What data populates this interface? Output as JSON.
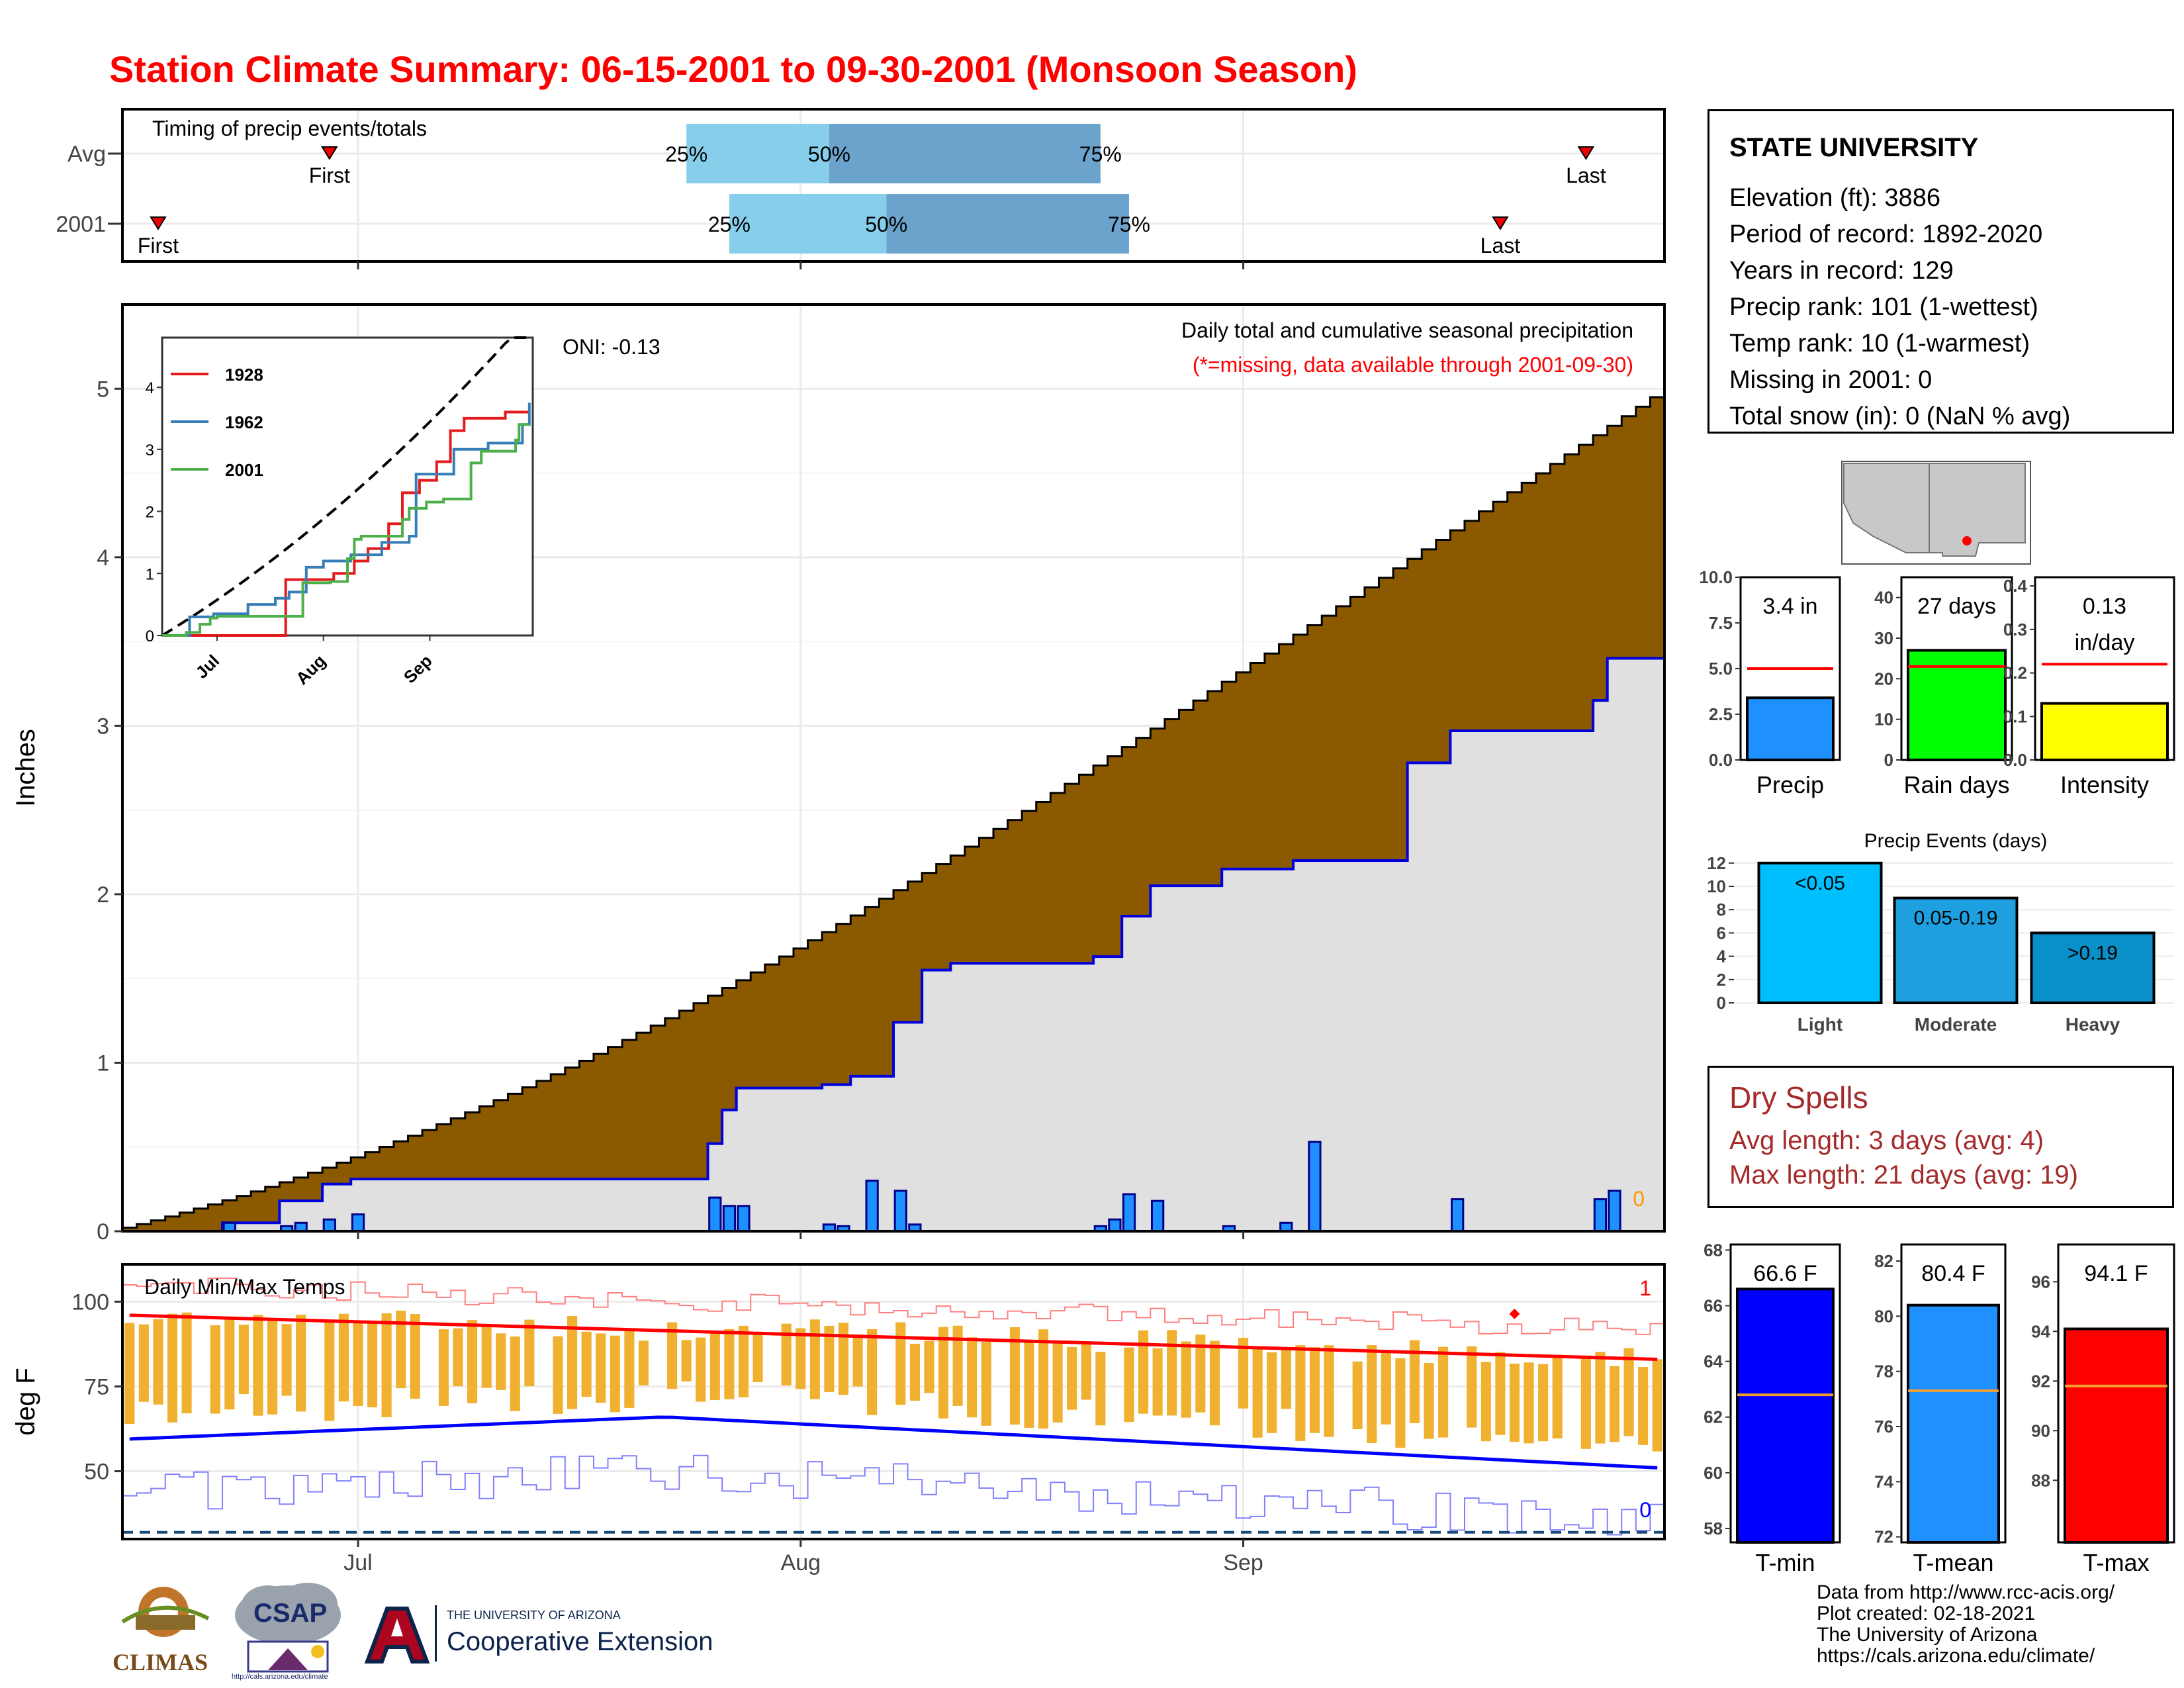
{
  "title": "Station Climate Summary: 06-15-2001 to 09-30-2001 (Monsoon Season)",
  "timing": {
    "label": "Timing of precip events/totals",
    "rows": [
      {
        "name": "Avg",
        "first": "06-29",
        "p25": "07-24",
        "p50": "08-03",
        "p75": "08-22",
        "last": "09-25"
      },
      {
        "name": "2001",
        "first": "06-17",
        "p25": "07-27",
        "p50": "08-07",
        "p75": "08-24",
        "last": "09-19"
      }
    ],
    "first_label": "First",
    "last_label": "Last",
    "p25_label": "25%",
    "p50_label": "50%",
    "p75_label": "75%"
  },
  "main": {
    "ylabel": "Inches",
    "oni": "ONI: -0.13",
    "note1": "Daily total and cumulative seasonal precipitation",
    "note2": "(*=missing, data available through 2001-09-30)",
    "missing_count": "0",
    "yticks": [
      "0",
      "1",
      "2",
      "3",
      "4",
      "5"
    ]
  },
  "inset": {
    "legend": [
      {
        "name": "1928",
        "color": "#e41a1c"
      },
      {
        "name": "1962",
        "color": "#377eb8"
      },
      {
        "name": "2001",
        "color": "#4daf4a"
      }
    ],
    "yticks": [
      "0",
      "1",
      "2",
      "3",
      "4"
    ],
    "xticks": [
      "Jul",
      "Aug",
      "Sep"
    ]
  },
  "temps": {
    "label": "Daily Min/Max Temps",
    "ylabel": "deg F",
    "yticks": [
      "50",
      "75",
      "100"
    ],
    "record_high_count": "1",
    "record_low_count": "0"
  },
  "xaxis": {
    "ticks": [
      "Jul",
      "Aug",
      "Sep"
    ]
  },
  "station": {
    "name": "STATE UNIVERSITY",
    "lines": [
      "Elevation (ft): 3886",
      "Period of record: 1892-2020",
      "Years in record: 129",
      "Precip rank: 101 (1-wettest)",
      "Temp rank: 10 (1-warmest)",
      "Missing in 2001: 0",
      "Total snow (in): 0 (NaN % avg)"
    ]
  },
  "mini_bars": [
    {
      "label": "Precip",
      "value_text": "3.4 in",
      "value": 3.4,
      "avg": 5.0,
      "ymax": 10.0,
      "ticks": [
        "0.0",
        "2.5",
        "5.0",
        "7.5",
        "10.0"
      ],
      "color": "#1e90ff"
    },
    {
      "label": "Rain days",
      "value_text": "27 days",
      "value": 27,
      "avg": 23,
      "ymax": 45,
      "ticks": [
        "0",
        "10",
        "20",
        "30",
        "40"
      ],
      "color": "#00ff00"
    },
    {
      "label": "Intensity",
      "value_text": "0.13",
      "value_text2": "in/day",
      "value": 0.13,
      "avg": 0.22,
      "ymax": 0.42,
      "ticks": [
        "0.0",
        "0.1",
        "0.2",
        "0.3",
        "0.4"
      ],
      "color": "#ffff00"
    }
  ],
  "events": {
    "title": "Precip Events (days)",
    "yticks": [
      "0",
      "2",
      "4",
      "6",
      "8",
      "10",
      "12"
    ],
    "bars": [
      {
        "cat": "Light",
        "text": "<0.05",
        "value": 12,
        "color": "#00bfff"
      },
      {
        "cat": "Moderate",
        "text": "0.05-0.19",
        "value": 9,
        "color": "#1ea0e0"
      },
      {
        "cat": "Heavy",
        "text": ">0.19",
        "value": 6,
        "color": "#0a90c8"
      }
    ]
  },
  "dry_spells": {
    "title": "Dry Spells",
    "avg_line": "Avg length: 3 days (avg: 4)",
    "max_line": "Max length: 21 days (avg: 19)"
  },
  "temp_bars": [
    {
      "label": "T-min",
      "value_text": "66.6 F",
      "value": 66.6,
      "avg": 62.8,
      "ymin": 57.5,
      "ymax": 68.2,
      "ticks": [
        "58",
        "60",
        "62",
        "64",
        "66",
        "68"
      ],
      "color": "#0000ff"
    },
    {
      "label": "T-mean",
      "value_text": "80.4 F",
      "value": 80.4,
      "avg": 77.3,
      "ymin": 71.8,
      "ymax": 82.6,
      "ticks": [
        "72",
        "74",
        "76",
        "78",
        "80",
        "82"
      ],
      "color": "#1e90ff"
    },
    {
      "label": "T-max",
      "value_text": "94.1 F",
      "value": 94.1,
      "avg": 91.8,
      "ymin": 85.5,
      "ymax": 97.5,
      "ticks": [
        "88",
        "90",
        "92",
        "94",
        "96"
      ],
      "color": "#ff0000"
    }
  ],
  "footer": {
    "lines": [
      "Data from http://www.rcc-acis.org/",
      "Plot created: 02-18-2021",
      "The University of Arizona",
      "https://cals.arizona.edu/climate/"
    ]
  },
  "logos": {
    "climas": "CLIMAS",
    "csap": "CSAP",
    "csap_url": "http://cals.arizona.edu/climate",
    "ua_top": "THE UNIVERSITY OF ARIZONA",
    "ua_bottom": "Cooperative Extension"
  },
  "chart_data": [
    {
      "type": "area",
      "title": "Daily total and cumulative seasonal precipitation",
      "ylabel": "Inches",
      "ylim": [
        0,
        5.5
      ],
      "x_start": "2001-06-15",
      "x_end": "2001-09-30",
      "avg_cumulative_final": 4.95,
      "observed_cumulative_steps": [
        {
          "date": "06-15",
          "value": 0.0
        },
        {
          "date": "06-22",
          "value": 0.05
        },
        {
          "date": "06-26",
          "value": 0.18
        },
        {
          "date": "06-29",
          "value": 0.28
        },
        {
          "date": "07-01",
          "value": 0.31
        },
        {
          "date": "07-26",
          "value": 0.52
        },
        {
          "date": "07-27",
          "value": 0.72
        },
        {
          "date": "07-28",
          "value": 0.85
        },
        {
          "date": "08-03",
          "value": 0.87
        },
        {
          "date": "08-05",
          "value": 0.92
        },
        {
          "date": "08-08",
          "value": 1.24
        },
        {
          "date": "08-10",
          "value": 1.55
        },
        {
          "date": "08-12",
          "value": 1.59
        },
        {
          "date": "08-22",
          "value": 1.63
        },
        {
          "date": "08-24",
          "value": 1.87
        },
        {
          "date": "08-26",
          "value": 2.05
        },
        {
          "date": "08-31",
          "value": 2.15
        },
        {
          "date": "09-05",
          "value": 2.2
        },
        {
          "date": "09-13",
          "value": 2.78
        },
        {
          "date": "09-16",
          "value": 2.97
        },
        {
          "date": "09-26",
          "value": 3.15
        },
        {
          "date": "09-27",
          "value": 3.4
        }
      ],
      "daily_precip": [
        {
          "date": "06-22",
          "value": 0.05
        },
        {
          "date": "06-26",
          "value": 0.03
        },
        {
          "date": "06-27",
          "value": 0.05
        },
        {
          "date": "06-29",
          "value": 0.07
        },
        {
          "date": "07-01",
          "value": 0.1
        },
        {
          "date": "07-26",
          "value": 0.2
        },
        {
          "date": "07-27",
          "value": 0.15
        },
        {
          "date": "07-28",
          "value": 0.15
        },
        {
          "date": "08-03",
          "value": 0.04
        },
        {
          "date": "08-04",
          "value": 0.03
        },
        {
          "date": "08-06",
          "value": 0.3
        },
        {
          "date": "08-08",
          "value": 0.24
        },
        {
          "date": "08-09",
          "value": 0.04
        },
        {
          "date": "08-22",
          "value": 0.03
        },
        {
          "date": "08-23",
          "value": 0.07
        },
        {
          "date": "08-24",
          "value": 0.22
        },
        {
          "date": "08-26",
          "value": 0.18
        },
        {
          "date": "08-31",
          "value": 0.03
        },
        {
          "date": "09-04",
          "value": 0.05
        },
        {
          "date": "09-06",
          "value": 0.53
        },
        {
          "date": "09-16",
          "value": 0.19
        },
        {
          "date": "09-26",
          "value": 0.19
        },
        {
          "date": "09-27",
          "value": 0.24
        }
      ]
    },
    {
      "type": "line",
      "title": "",
      "xticks": [
        "Jul",
        "Aug",
        "Sep"
      ],
      "ylim": [
        0,
        4.8
      ],
      "series": [
        {
          "name": "1928",
          "color": "#e41a1c",
          "final": 3.6
        },
        {
          "name": "1962",
          "color": "#377eb8",
          "final": 3.75
        },
        {
          "name": "2001",
          "color": "#4daf4a",
          "final": 3.4
        }
      ]
    },
    {
      "type": "line",
      "title": "Daily Min/Max Temps",
      "ylabel": "deg F",
      "ylim": [
        30,
        111
      ],
      "avg_max_start": 96,
      "avg_max_end": 83,
      "avg_min_start": 59.5,
      "avg_min_peak": 66,
      "avg_min_end": 51,
      "record_high_count": 1,
      "record_low_count": 0
    },
    {
      "type": "bar",
      "title": "Precip Events (days)",
      "categories": [
        "Light",
        "Moderate",
        "Heavy"
      ],
      "values": [
        12,
        9,
        6
      ],
      "ylim": [
        0,
        12.5
      ]
    }
  ]
}
